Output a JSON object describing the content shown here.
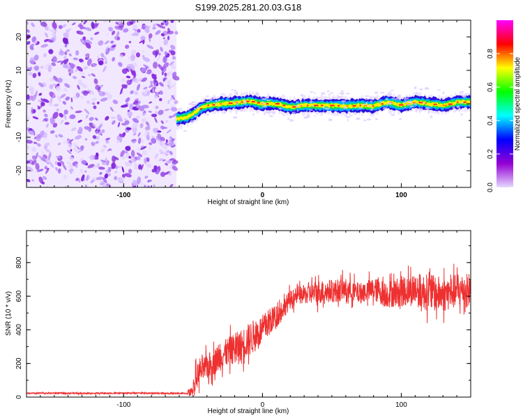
{
  "title": "S199.2025.281.20.03.G18",
  "colors": {
    "snr_line": "#ee3030",
    "noise_purple": "#8a2be2",
    "axis": "#000000",
    "background": "#ffffff"
  },
  "chart_data": [
    {
      "type": "heatmap",
      "name": "spectrogram",
      "xlabel": "Height of straight line (km)",
      "ylabel": "Frequency (Hz)",
      "xlim": [
        -170,
        150
      ],
      "ylim": [
        -25,
        25
      ],
      "xticks": [
        -100,
        0,
        100
      ],
      "xtick_labels": [
        "-100",
        "0",
        "100"
      ],
      "yticks": [
        -20,
        -10,
        0,
        10,
        20
      ],
      "ytick_labels": [
        "-20",
        "-10",
        "0",
        "10",
        "20"
      ],
      "noise_region_x": [
        -170,
        -62
      ],
      "ridge_points": [
        {
          "x": -62,
          "y": -4.5
        },
        {
          "x": -55,
          "y": -4.0
        },
        {
          "x": -50,
          "y": -3.0
        },
        {
          "x": -45,
          "y": -1.5
        },
        {
          "x": -40,
          "y": -0.5
        },
        {
          "x": -30,
          "y": 0.0
        },
        {
          "x": -20,
          "y": 0.3
        },
        {
          "x": -10,
          "y": 0.8
        },
        {
          "x": 0,
          "y": 0.0
        },
        {
          "x": 10,
          "y": 0.0
        },
        {
          "x": 20,
          "y": -1.0
        },
        {
          "x": 30,
          "y": -0.5
        },
        {
          "x": 40,
          "y": -0.5
        },
        {
          "x": 50,
          "y": -0.5
        },
        {
          "x": 60,
          "y": -0.7
        },
        {
          "x": 70,
          "y": -0.5
        },
        {
          "x": 80,
          "y": -0.7
        },
        {
          "x": 90,
          "y": 0.5
        },
        {
          "x": 100,
          "y": -0.5
        },
        {
          "x": 110,
          "y": 0.5
        },
        {
          "x": 120,
          "y": 0.0
        },
        {
          "x": 130,
          "y": -0.5
        },
        {
          "x": 140,
          "y": 0.5
        },
        {
          "x": 150,
          "y": 0.5
        }
      ],
      "colorbar": {
        "label": "Normalized spectral amplitude",
        "range": [
          0,
          1
        ],
        "ticks": [
          0.0,
          0.2,
          0.4,
          0.6,
          0.8
        ],
        "tick_labels": [
          "0.0",
          "0.2",
          "0.4",
          "0.6",
          "0.8"
        ],
        "stops": [
          "#ff00ff",
          "#ff0000",
          "#ffff00",
          "#00ff00",
          "#00ffff",
          "#0000ff",
          "#9400d3",
          "#e6d8ff"
        ]
      }
    },
    {
      "type": "line",
      "name": "snr",
      "xlabel": "Height of straight line (km)",
      "ylabel": "SNR (10 * v/v)",
      "xlim": [
        -170,
        150
      ],
      "ylim": [
        0,
        990
      ],
      "xticks": [
        -100,
        0,
        100
      ],
      "xtick_labels": [
        "-100",
        "0",
        "100"
      ],
      "yticks": [
        0,
        200,
        400,
        600,
        800
      ],
      "ytick_labels": [
        "0",
        "200",
        "400",
        "600",
        "800"
      ],
      "x": [
        -170,
        -150,
        -130,
        -110,
        -90,
        -70,
        -55,
        -51,
        -48,
        -45,
        -40,
        -35,
        -30,
        -25,
        -20,
        -15,
        -10,
        -5,
        0,
        5,
        10,
        15,
        20,
        25,
        30,
        40,
        50,
        60,
        70,
        80,
        90,
        100,
        110,
        120,
        130,
        140,
        150
      ],
      "y": [
        22,
        24,
        22,
        23,
        24,
        22,
        22,
        30,
        110,
        150,
        180,
        210,
        240,
        270,
        290,
        310,
        340,
        370,
        400,
        450,
        480,
        530,
        580,
        600,
        610,
        625,
        630,
        640,
        620,
        640,
        610,
        630,
        640,
        620,
        610,
        630,
        640
      ],
      "spread": [
        8,
        8,
        8,
        8,
        8,
        8,
        8,
        60,
        140,
        140,
        150,
        160,
        160,
        170,
        180,
        190,
        200,
        200,
        180,
        160,
        140,
        120,
        110,
        100,
        110,
        140,
        140,
        130,
        120,
        140,
        160,
        180,
        200,
        220,
        210,
        200,
        200
      ]
    }
  ]
}
